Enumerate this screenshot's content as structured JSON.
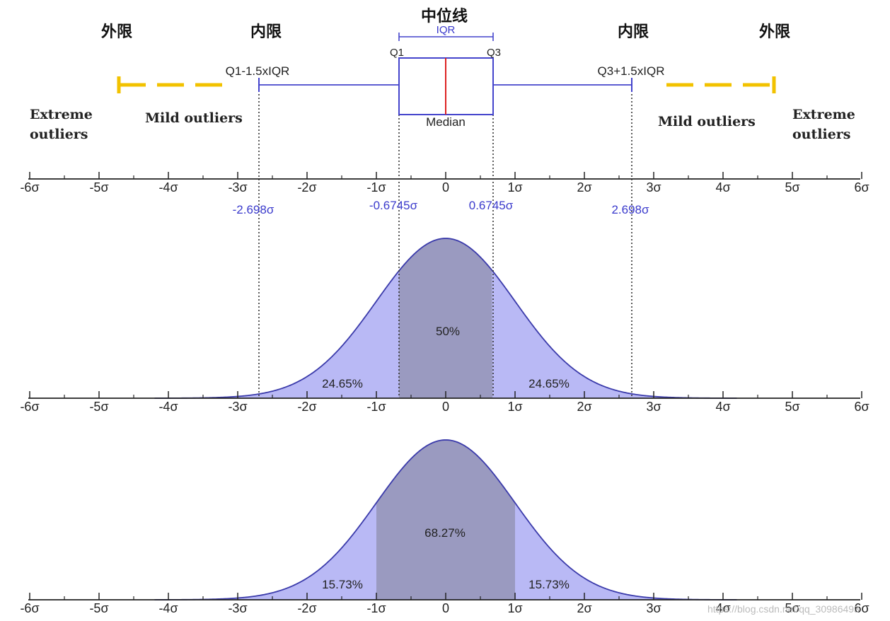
{
  "labels": {
    "median_line_zh": "中位线",
    "outer_fence_left_zh": "外限",
    "inner_fence_left_zh": "内限",
    "inner_fence_right_zh": "内限",
    "outer_fence_right_zh": "外限",
    "iqr": "IQR",
    "q1": "Q1",
    "q3": "Q3",
    "median": "Median",
    "lower_fence": "Q1-1.5xIQR",
    "upper_fence": "Q3+1.5xIQR",
    "extreme_left_1": "Extreme",
    "extreme_left_2": "outliers",
    "extreme_right_1": "Extreme",
    "extreme_right_2": "outliers",
    "mild_left": "Mild outliers",
    "mild_right": "Mild outliers",
    "val_neg_2698": "-2.698σ",
    "val_neg_06745": "-0.6745σ",
    "val_pos_06745": "0.6745σ",
    "val_pos_2698": "2.698σ",
    "pct_center_1": "50%",
    "pct_left_1": "24.65%",
    "pct_right_1": "24.65%",
    "pct_center_2": "68.27%",
    "pct_left_2": "15.73%",
    "pct_right_2": "15.73%",
    "watermark": "https://blog.csdn.net/qq_30986493"
  },
  "axis_ticks": [
    "-6σ",
    "-5σ",
    "-4σ",
    "-3σ",
    "-2σ",
    "-1σ",
    "0",
    "1σ",
    "2σ",
    "3σ",
    "4σ",
    "5σ",
    "6σ"
  ],
  "colors": {
    "box_blue": "#4444cc",
    "median_red": "#dd2222",
    "fence_yellow": "#f2c200",
    "curve_fill": "#b9b9f5",
    "shade_fill": "#9a9ac0",
    "curve_line": "#3a3aaa"
  },
  "chart_data": {
    "type": "area",
    "distribution": "standard normal",
    "x_range": [
      -6,
      6
    ],
    "boxplot": {
      "q1": -0.6745,
      "median": 0,
      "q3": 0.6745,
      "lower_fence": -2.698,
      "upper_fence": 2.698
    },
    "panels": [
      {
        "shaded_from": -0.6745,
        "shaded_to": 0.6745,
        "center_pct": 50,
        "left_pct": 24.65,
        "right_pct": 24.65
      },
      {
        "shaded_from": -1,
        "shaded_to": 1,
        "center_pct": 68.27,
        "left_pct": 15.73,
        "right_pct": 15.73
      }
    ]
  }
}
